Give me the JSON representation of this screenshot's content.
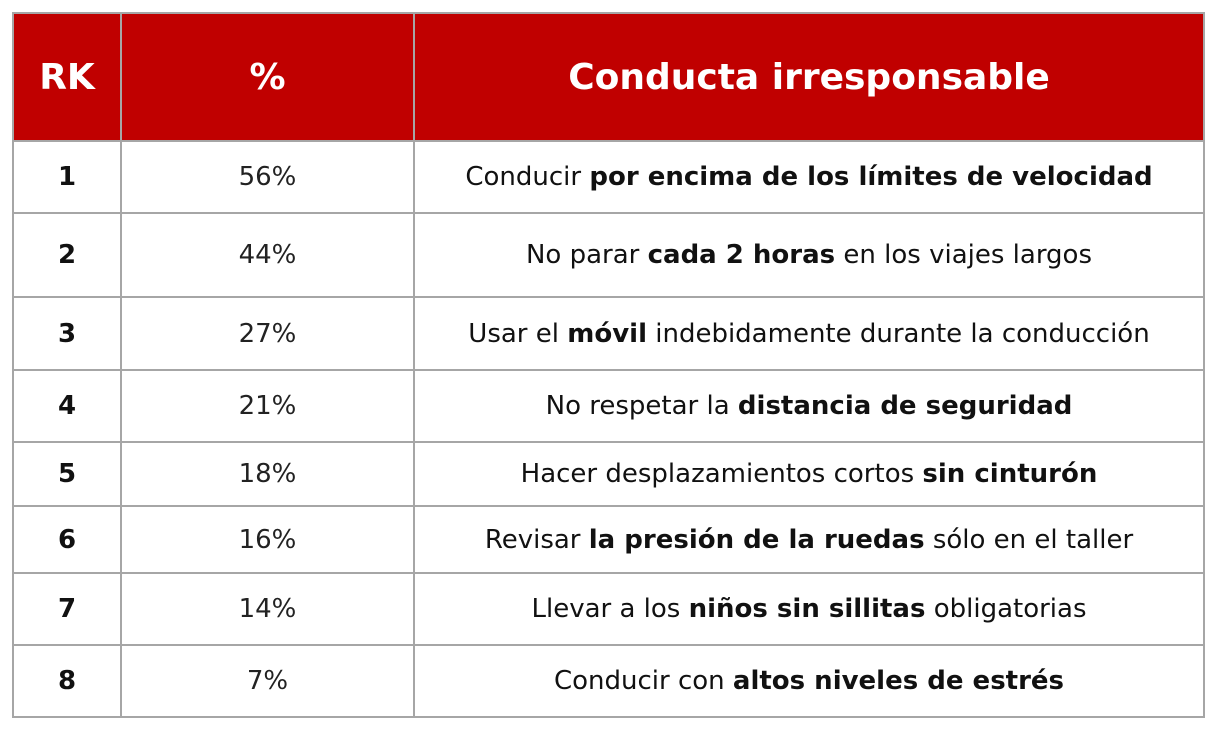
{
  "header": {
    "rk": "RK",
    "pct": "%",
    "desc": "Conducta irresponsable"
  },
  "colors": {
    "header_bg": "#c00000",
    "border": "#a6a6a6"
  },
  "rows": [
    {
      "rk": "1",
      "pct": "56%",
      "parts": [
        {
          "t": "Conducir ",
          "b": false
        },
        {
          "t": "por encima de los límites de velocidad",
          "b": true
        }
      ]
    },
    {
      "rk": "2",
      "pct": "44%",
      "parts": [
        {
          "t": "No parar ",
          "b": false
        },
        {
          "t": "cada 2 horas",
          "b": true
        },
        {
          "t": " en los viajes largos",
          "b": false
        }
      ]
    },
    {
      "rk": "3",
      "pct": "27%",
      "parts": [
        {
          "t": "Usar el ",
          "b": false
        },
        {
          "t": "móvil",
          "b": true
        },
        {
          "t": " indebidamente durante la conducción",
          "b": false
        }
      ]
    },
    {
      "rk": "4",
      "pct": "21%",
      "parts": [
        {
          "t": "No respetar la ",
          "b": false
        },
        {
          "t": "distancia de seguridad",
          "b": true
        }
      ]
    },
    {
      "rk": "5",
      "pct": "18%",
      "parts": [
        {
          "t": "Hacer desplazamientos cortos ",
          "b": false
        },
        {
          "t": "sin cinturón",
          "b": true
        }
      ]
    },
    {
      "rk": "6",
      "pct": "16%",
      "parts": [
        {
          "t": "Revisar ",
          "b": false
        },
        {
          "t": "la presión de la ruedas",
          "b": true
        },
        {
          "t": " sólo en el taller",
          "b": false
        }
      ]
    },
    {
      "rk": "7",
      "pct": "14%",
      "parts": [
        {
          "t": "Llevar a los ",
          "b": false
        },
        {
          "t": "niños sin sillitas",
          "b": true
        },
        {
          "t": " obligatorias",
          "b": false
        }
      ]
    },
    {
      "rk": "8",
      "pct": "7%",
      "parts": [
        {
          "t": "Conducir con ",
          "b": false
        },
        {
          "t": "altos niveles de estrés",
          "b": true
        }
      ]
    }
  ]
}
